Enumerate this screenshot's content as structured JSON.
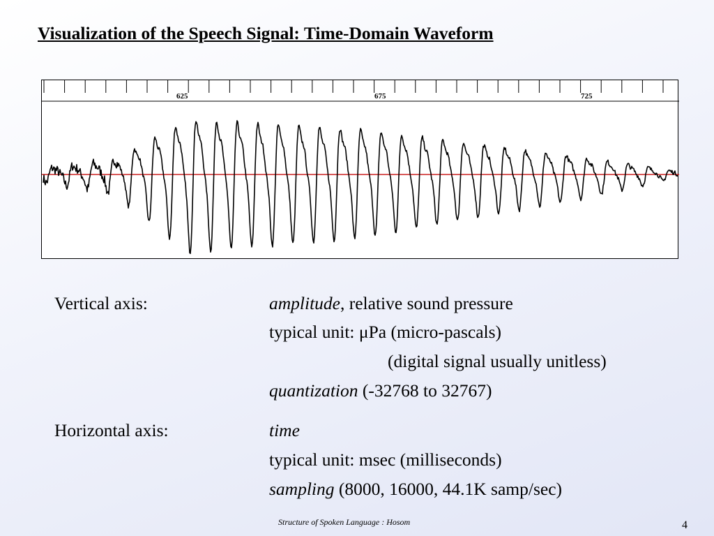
{
  "slide": {
    "title": "Visualization of the Speech Signal: Time-Domain Waveform",
    "footer": "Structure of Spoken Language : Hosom",
    "page_number": "4"
  },
  "waveform": {
    "time_ticks": [
      "625",
      "675",
      "725"
    ],
    "colors": {
      "baseline": "#cc2222",
      "trace": "#000000",
      "frame": "#000000"
    }
  },
  "vertical_axis": {
    "label": "Vertical axis:",
    "line1_em": "amplitude",
    "line1_rest": ", relative sound pressure",
    "line2_prefix": "typical unit: ",
    "line2_mu": "μ",
    "line2_rest": "Pa (micro-pascals)",
    "line3": "(digital signal usually unitless)",
    "line4_em": "quantization",
    "line4_rest": " (-32768 to 32767)"
  },
  "horizontal_axis": {
    "label": "Horizontal axis:",
    "line1_em": "time",
    "line2": "typical unit: msec (milliseconds)",
    "line3_em": "sampling",
    "line3_rest": " (8000, 16000, 44.1K samp/sec)"
  }
}
